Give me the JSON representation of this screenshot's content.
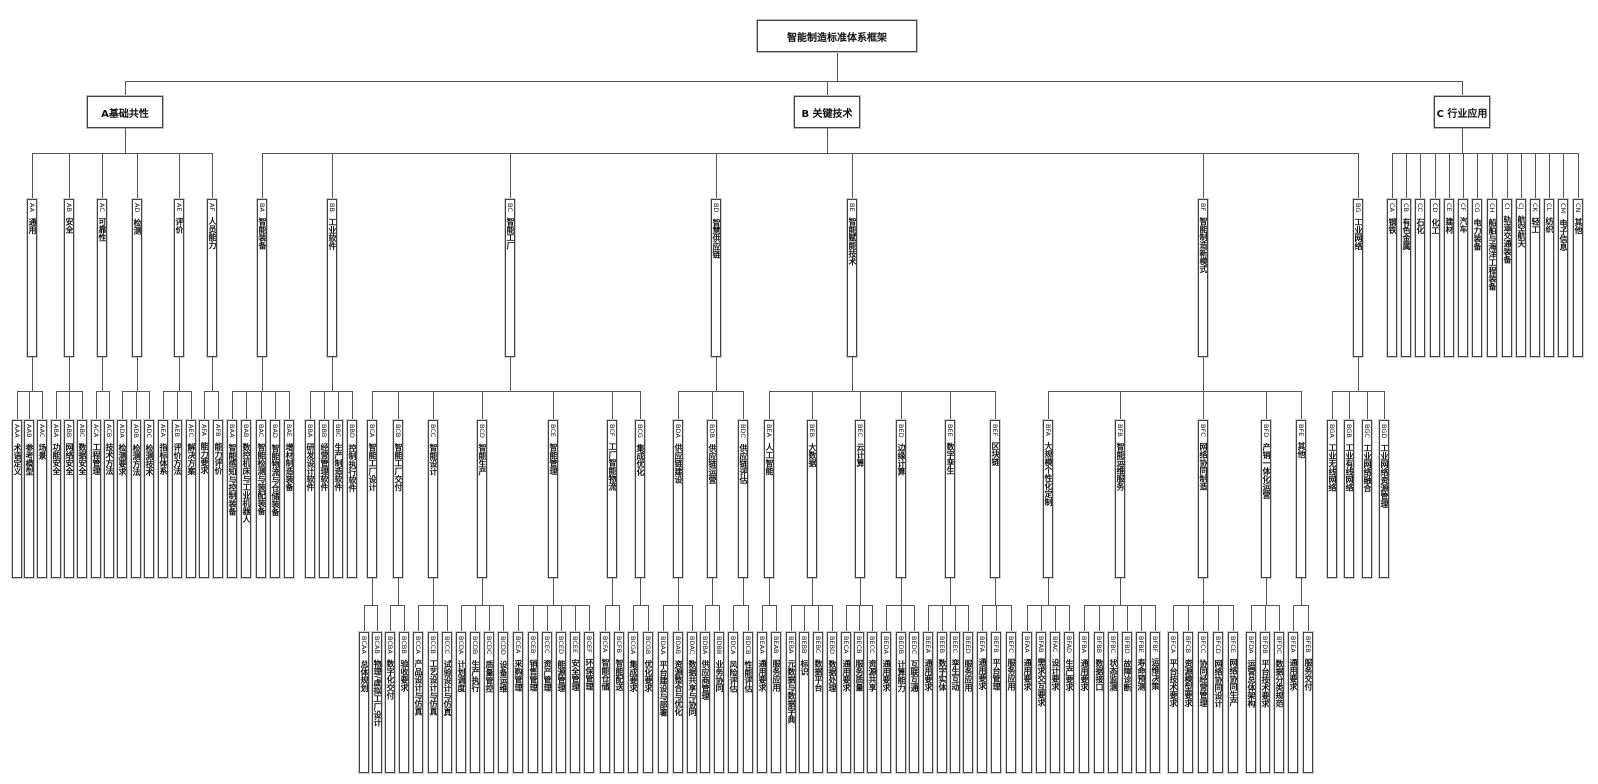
{
  "root": {
    "label": "智能制造标准体系框架"
  },
  "sections": [
    {
      "code": "A",
      "label": "A基础共性",
      "children": [
        {
          "code": "AA",
          "name": "通用",
          "children": [
            {
              "code": "AAA",
              "name": "术语定义"
            },
            {
              "code": "AAB",
              "name": "参考模型"
            },
            {
              "code": "AAC",
              "name": "场景"
            }
          ]
        },
        {
          "code": "AB",
          "name": "安全",
          "children": [
            {
              "code": "ABA",
              "name": "功能安全"
            },
            {
              "code": "ABB",
              "name": "网络安全"
            },
            {
              "code": "ABC",
              "name": "数据安全"
            }
          ]
        },
        {
          "code": "AC",
          "name": "可靠性",
          "children": [
            {
              "code": "ACA",
              "name": "工程管理"
            },
            {
              "code": "ACB",
              "name": "技术方法"
            }
          ]
        },
        {
          "code": "AD",
          "name": "检测",
          "children": [
            {
              "code": "ADA",
              "name": "检测要求"
            },
            {
              "code": "ADB",
              "name": "检测方法"
            },
            {
              "code": "ADC",
              "name": "检测技术"
            }
          ]
        },
        {
          "code": "AE",
          "name": "评价",
          "children": [
            {
              "code": "AEA",
              "name": "指标体系"
            },
            {
              "code": "AEB",
              "name": "评价方法"
            },
            {
              "code": "AEC",
              "name": "解决方案"
            }
          ]
        },
        {
          "code": "AF",
          "name": "人员能力",
          "children": [
            {
              "code": "AFA",
              "name": "能力要求"
            },
            {
              "code": "AFB",
              "name": "能力评价"
            }
          ]
        }
      ]
    },
    {
      "code": "B",
      "label": "B 关键技术",
      "children": [
        {
          "code": "BA",
          "name": "智能装备",
          "children": [
            {
              "code": "BAA",
              "name": "智能感知与控制装备"
            },
            {
              "code": "BAB",
              "name": "数控机床与工业机器人"
            },
            {
              "code": "BAC",
              "name": "智能检测与装配装备"
            },
            {
              "code": "BAD",
              "name": "智能物流与仓储装备"
            },
            {
              "code": "BAE",
              "name": "增材制造装备"
            }
          ]
        },
        {
          "code": "BB",
          "name": "工业软件",
          "children": [
            {
              "code": "BBA",
              "name": "研发设计软件"
            },
            {
              "code": "BBB",
              "name": "经营管理软件"
            },
            {
              "code": "BBC",
              "name": "生产制造软件"
            },
            {
              "code": "BBD",
              "name": "控制执行软件"
            }
          ]
        },
        {
          "code": "BC",
          "name": "智能工厂",
          "children": [
            {
              "code": "BCA",
              "name": "智能工厂设计",
              "children": [
                {
                  "code": "BCAA",
                  "name": "总体规划"
                },
                {
                  "code": "BCAB",
                  "name": "物理/虚拟工厂设计"
                }
              ]
            },
            {
              "code": "BCB",
              "name": "智能工厂交付",
              "children": [
                {
                  "code": "BCBA",
                  "name": "数字化交付"
                },
                {
                  "code": "BCBB",
                  "name": "验收要求"
                }
              ]
            },
            {
              "code": "BCC",
              "name": "智能设计",
              "children": [
                {
                  "code": "BCCA",
                  "name": "产品设计与仿真"
                },
                {
                  "code": "BCCB",
                  "name": "工艺设计与仿真"
                },
                {
                  "code": "BCCC",
                  "name": "试验设计与仿真"
                }
              ]
            },
            {
              "code": "BCD",
              "name": "智能生产",
              "children": [
                {
                  "code": "BCDA",
                  "name": "计划调度"
                },
                {
                  "code": "BCDB",
                  "name": "生产执行"
                },
                {
                  "code": "BCDC",
                  "name": "质量管控"
                },
                {
                  "code": "BCDD",
                  "name": "设备运维"
                }
              ]
            },
            {
              "code": "BCE",
              "name": "智能管理",
              "children": [
                {
                  "code": "BCEA",
                  "name": "采购管理"
                },
                {
                  "code": "BCEB",
                  "name": "销售管理"
                },
                {
                  "code": "BCEC",
                  "name": "资产管理"
                },
                {
                  "code": "BCED",
                  "name": "能源管理"
                },
                {
                  "code": "BCEE",
                  "name": "安全管理"
                },
                {
                  "code": "BCEF",
                  "name": "环保管理"
                }
              ]
            },
            {
              "code": "BCF",
              "name": "工厂智能物流",
              "children": [
                {
                  "code": "BCFA",
                  "name": "智能仓储"
                },
                {
                  "code": "BCFB",
                  "name": "智能配送"
                }
              ]
            },
            {
              "code": "BCG",
              "name": "集成优化",
              "children": [
                {
                  "code": "BCGA",
                  "name": "集成要求"
                },
                {
                  "code": "BCGB",
                  "name": "优化要求"
                }
              ]
            }
          ]
        },
        {
          "code": "BD",
          "name": "智慧供应链",
          "children": [
            {
              "code": "BDA",
              "name": "供应链建设",
              "children": [
                {
                  "code": "BDAA",
                  "name": "平台建设与部署"
                },
                {
                  "code": "BDAB",
                  "name": "资源整合与优化"
                },
                {
                  "code": "BDAC",
                  "name": "数据共享与协同"
                }
              ]
            },
            {
              "code": "BDB",
              "name": "供应链运营",
              "children": [
                {
                  "code": "BDBA",
                  "name": "供应商管理"
                },
                {
                  "code": "BDBB",
                  "name": "业务协同"
                }
              ]
            },
            {
              "code": "BDC",
              "name": "供应链评估",
              "children": [
                {
                  "code": "BDCA",
                  "name": "风险评估"
                },
                {
                  "code": "BDCB",
                  "name": "性能评估"
                }
              ]
            }
          ]
        },
        {
          "code": "BE",
          "name": "智能赋能技术",
          "children": [
            {
              "code": "BEA",
              "name": "人工智能",
              "children": [
                {
                  "code": "BEAA",
                  "name": "通用要求"
                },
                {
                  "code": "BEAB",
                  "name": "服务应用"
                }
              ]
            },
            {
              "code": "BEB",
              "name": "大数据",
              "children": [
                {
                  "code": "BEBA",
                  "name": "元数据与数据字典"
                },
                {
                  "code": "BEBB",
                  "name": "标识"
                },
                {
                  "code": "BEBC",
                  "name": "数据平台"
                },
                {
                  "code": "BEBD",
                  "name": "数据处理"
                }
              ]
            },
            {
              "code": "BEC",
              "name": "云计算",
              "children": [
                {
                  "code": "BECA",
                  "name": "通用要求"
                },
                {
                  "code": "BECB",
                  "name": "服务质量"
                },
                {
                  "code": "BECC",
                  "name": "资源共享"
                }
              ]
            },
            {
              "code": "BED",
              "name": "边缘计算",
              "children": [
                {
                  "code": "BEDA",
                  "name": "通用要求"
                },
                {
                  "code": "BEDB",
                  "name": "计算能力"
                },
                {
                  "code": "BEDC",
                  "name": "互联互通"
                }
              ]
            },
            {
              "code": "BEE",
              "name": "数字孪生",
              "children": [
                {
                  "code": "BEEA",
                  "name": "通用要求"
                },
                {
                  "code": "BEEB",
                  "name": "数字实体"
                },
                {
                  "code": "BEEC",
                  "name": "孪生互动"
                },
                {
                  "code": "BEED",
                  "name": "服务应用"
                }
              ]
            },
            {
              "code": "BEF",
              "name": "区块链",
              "children": [
                {
                  "code": "BEFA",
                  "name": "通用要求"
                },
                {
                  "code": "BEFB",
                  "name": "平台管理"
                },
                {
                  "code": "BEFC",
                  "name": "服务应用"
                }
              ]
            }
          ]
        },
        {
          "code": "BF",
          "name": "智能制造新模式",
          "children": [
            {
              "code": "BFA",
              "name": "大规模个性化定制",
              "children": [
                {
                  "code": "BFAA",
                  "name": "通用要求"
                },
                {
                  "code": "BFAB",
                  "name": "需求交互要求"
                },
                {
                  "code": "BFAC",
                  "name": "设计要求"
                },
                {
                  "code": "BFAD",
                  "name": "生产要求"
                }
              ]
            },
            {
              "code": "BFB",
              "name": "智能运维服务",
              "children": [
                {
                  "code": "BFBA",
                  "name": "通用要求"
                },
                {
                  "code": "BFBB",
                  "name": "数据接口"
                },
                {
                  "code": "BFBC",
                  "name": "状态监测"
                },
                {
                  "code": "BFBD",
                  "name": "故障诊断"
                },
                {
                  "code": "BFBE",
                  "name": "寿命预测"
                },
                {
                  "code": "BFBF",
                  "name": "运维决策"
                }
              ]
            },
            {
              "code": "BFC",
              "name": "网络协同制造",
              "children": [
                {
                  "code": "BFCA",
                  "name": "平台技术要求"
                },
                {
                  "code": "BFCB",
                  "name": "资源模型要求"
                },
                {
                  "code": "BFCC",
                  "name": "协同经营管理"
                },
                {
                  "code": "BFCD",
                  "name": "网络协同设计"
                },
                {
                  "code": "BFCE",
                  "name": "网络协同生产"
                }
              ]
            },
            {
              "code": "BFD",
              "name": "产销一体化运营",
              "children": [
                {
                  "code": "BFDA",
                  "name": "运营总体架构"
                },
                {
                  "code": "BFDB",
                  "name": "平台技术要求"
                },
                {
                  "code": "BFDC",
                  "name": "数据分类规范"
                }
              ]
            },
            {
              "code": "BFE",
              "name": "其他",
              "children": [
                {
                  "code": "BFEA",
                  "name": "通用要求"
                },
                {
                  "code": "BFEB",
                  "name": "服务交付"
                }
              ]
            }
          ]
        },
        {
          "code": "BG",
          "name": "工业网络",
          "children": [
            {
              "code": "BGA",
              "name": "工业无线网络"
            },
            {
              "code": "BGB",
              "name": "工业有线网络"
            },
            {
              "code": "BGC",
              "name": "工业网络融合"
            },
            {
              "code": "BGD",
              "name": "工业网络资源管理"
            }
          ]
        }
      ]
    },
    {
      "code": "C",
      "label": "C 行业应用",
      "children": [
        {
          "code": "CA",
          "name": "钢铁"
        },
        {
          "code": "CB",
          "name": "有色金属"
        },
        {
          "code": "CC",
          "name": "石化"
        },
        {
          "code": "CD",
          "name": "化工"
        },
        {
          "code": "CE",
          "name": "建材"
        },
        {
          "code": "CF",
          "name": "汽车"
        },
        {
          "code": "CG",
          "name": "电力装备"
        },
        {
          "code": "CH",
          "name": "船舶与海洋工程装备"
        },
        {
          "code": "CI",
          "name": "轨道交通装备"
        },
        {
          "code": "CJ",
          "name": "航空航天"
        },
        {
          "code": "CK",
          "name": "轻工"
        },
        {
          "code": "CL",
          "name": "纺织"
        },
        {
          "code": "CM",
          "name": "电子信息"
        },
        {
          "code": "CN",
          "name": "其他"
        }
      ]
    }
  ]
}
